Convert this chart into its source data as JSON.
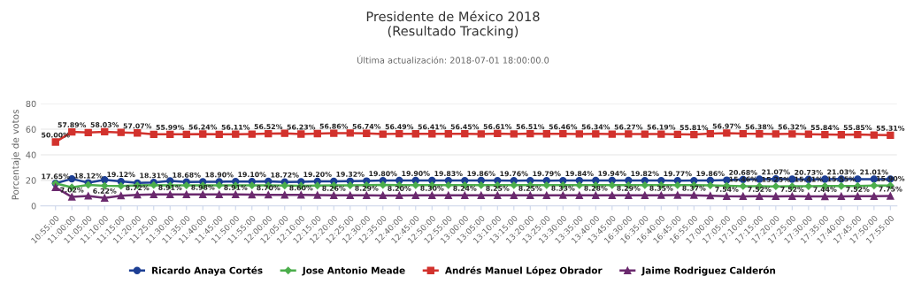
{
  "chart_data": {
    "type": "line",
    "title": "Presidente de México 2018\n(Resultado Tracking)",
    "subtitle": "Última actualización: 2018-07-01 18:00:00.0",
    "ylabel": "Porcentaje de votos",
    "categories": [
      "10:55:00",
      "11:00:00",
      "11:05:00",
      "11:10:00",
      "11:15:00",
      "11:20:00",
      "11:25:00",
      "11:30:00",
      "11:35:00",
      "11:40:00",
      "11:45:00",
      "11:50:00",
      "11:55:00",
      "12:00:00",
      "12:05:00",
      "12:10:00",
      "12:15:00",
      "12:20:00",
      "12:25:00",
      "12:30:00",
      "12:35:00",
      "12:40:00",
      "12:45:00",
      "12:50:00",
      "12:55:00",
      "13:00:00",
      "13:05:00",
      "13:10:00",
      "13:15:00",
      "13:20:00",
      "13:25:00",
      "13:30:00",
      "13:35:00",
      "13:40:00",
      "13:45:00",
      "16:30:00",
      "16:35:00",
      "16:40:00",
      "16:45:00",
      "16:55:00",
      "17:00:00",
      "17:05:00",
      "17:10:00",
      "17:15:00",
      "17:20:00",
      "17:25:00",
      "17:30:00",
      "17:35:00",
      "17:40:00",
      "17:45:00",
      "17:50:00",
      "17:55:00"
    ],
    "ylim": [
      0,
      80
    ],
    "yticks": [
      0,
      20,
      40,
      60,
      80
    ],
    "grid": "y",
    "legend": "bottom",
    "line_style": "solid",
    "series": [
      {
        "name": "Ricardo Anaya Cortés",
        "color": "#1d3f94",
        "marker": "circle",
        "values": [
          17.65,
          21.2,
          18.12,
          20.4,
          19.12,
          17.9,
          18.31,
          19.6,
          18.68,
          18.9,
          18.9,
          19.1,
          19.1,
          19.2,
          18.72,
          18.9,
          19.2,
          19.2,
          19.32,
          19.5,
          19.8,
          19.9,
          19.9,
          19.9,
          19.83,
          19.8,
          19.86,
          19.8,
          19.76,
          19.8,
          19.79,
          19.8,
          19.84,
          19.9,
          19.94,
          19.9,
          19.82,
          19.8,
          19.77,
          19.8,
          19.86,
          20.2,
          20.68,
          20.9,
          21.07,
          20.9,
          20.73,
          20.9,
          21.03,
          21.0,
          21.01,
          21.0
        ],
        "value_labels": [
          "17.65%",
          null,
          "18.12%",
          null,
          "19.12%",
          null,
          "18.31%",
          null,
          "18.68%",
          null,
          "18.90%",
          null,
          "19.10%",
          null,
          "18.72%",
          null,
          "19.20%",
          null,
          "19.32%",
          null,
          "19.80%",
          null,
          "19.90%",
          null,
          "19.83%",
          null,
          "19.86%",
          null,
          "19.76%",
          null,
          "19.79%",
          null,
          "19.84%",
          null,
          "19.94%",
          null,
          "19.82%",
          null,
          "19.77%",
          null,
          "19.86%",
          null,
          "20.68%",
          null,
          "21.07%",
          null,
          "20.73%",
          null,
          "21.03%",
          null,
          "21.01%",
          null
        ]
      },
      {
        "name": "Jose Antonio Meade",
        "color": "#4cae4c",
        "marker": "diamond",
        "values": [
          17.6,
          14.5,
          16.5,
          15.8,
          15.6,
          16.0,
          16.3,
          16.0,
          16.0,
          16.0,
          16.1,
          16.0,
          16.0,
          16.0,
          15.9,
          15.8,
          15.9,
          16.0,
          16.1,
          16.2,
          16.4,
          16.2,
          16.2,
          16.2,
          16.2,
          16.2,
          16.2,
          16.2,
          16.2,
          16.2,
          16.2,
          16.2,
          16.2,
          16.2,
          16.2,
          16.2,
          16.2,
          16.2,
          16.2,
          16.2,
          16.0,
          15.8,
          15.46,
          15.4,
          15.25,
          15.3,
          15.41,
          15.5,
          15.55,
          15.6,
          15.9,
          15.9
        ],
        "value_labels": [
          null,
          null,
          null,
          null,
          null,
          null,
          null,
          null,
          null,
          null,
          null,
          null,
          null,
          null,
          null,
          null,
          null,
          null,
          null,
          null,
          null,
          null,
          null,
          null,
          null,
          null,
          null,
          null,
          null,
          null,
          null,
          null,
          null,
          null,
          null,
          null,
          null,
          null,
          null,
          null,
          null,
          null,
          "15.46%",
          null,
          "15.25%",
          null,
          "15.41%",
          null,
          "15.55%",
          null,
          null,
          "15.90%"
        ]
      },
      {
        "name": "Andrés Manuel López Obrador",
        "color": "#d2322d",
        "marker": "square",
        "values": [
          50.0,
          57.89,
          57.4,
          58.03,
          57.5,
          57.07,
          56.0,
          55.99,
          56.0,
          56.24,
          56.0,
          56.11,
          56.2,
          56.52,
          56.8,
          56.23,
          56.6,
          56.86,
          57.0,
          56.74,
          56.2,
          56.49,
          56.4,
          56.41,
          56.4,
          56.45,
          56.3,
          56.61,
          56.3,
          56.51,
          56.4,
          56.46,
          56.3,
          56.34,
          56.2,
          56.27,
          56.2,
          56.19,
          56.0,
          55.81,
          56.5,
          56.97,
          56.5,
          56.38,
          56.3,
          56.32,
          56.1,
          55.84,
          55.7,
          55.85,
          55.5,
          55.31
        ],
        "value_labels": [
          "50.00%",
          "57.89%",
          null,
          "58.03%",
          null,
          "57.07%",
          null,
          "55.99%",
          null,
          "56.24%",
          null,
          "56.11%",
          null,
          "56.52%",
          null,
          "56.23%",
          null,
          "56.86%",
          null,
          "56.74%",
          null,
          "56.49%",
          null,
          "56.41%",
          null,
          "56.45%",
          null,
          "56.61%",
          null,
          "56.51%",
          null,
          "56.46%",
          null,
          "56.34%",
          null,
          "56.27%",
          null,
          "56.19%",
          null,
          "55.81%",
          null,
          "56.97%",
          null,
          "56.38%",
          null,
          "56.32%",
          null,
          "55.84%",
          null,
          "55.85%",
          null,
          "55.31%"
        ]
      },
      {
        "name": "Jaime Rodriguez Calderón",
        "color": "#6b2a6e",
        "marker": "triangle",
        "values": [
          14.5,
          7.02,
          7.8,
          6.22,
          8.0,
          8.72,
          9.0,
          8.91,
          8.9,
          8.98,
          9.0,
          8.91,
          8.8,
          8.7,
          8.6,
          8.6,
          8.4,
          8.26,
          8.3,
          8.29,
          8.2,
          8.2,
          8.3,
          8.3,
          8.3,
          8.24,
          8.3,
          8.25,
          8.3,
          8.25,
          8.3,
          8.33,
          8.3,
          8.28,
          8.3,
          8.29,
          8.3,
          8.35,
          8.4,
          8.37,
          8.0,
          7.54,
          7.5,
          7.52,
          7.5,
          7.52,
          7.5,
          7.44,
          7.5,
          7.52,
          7.6,
          7.75
        ],
        "value_labels": [
          null,
          "7.02%",
          null,
          "6.22%",
          null,
          "8.72%",
          null,
          "8.91%",
          null,
          "8.98%",
          null,
          "8.91%",
          null,
          "8.70%",
          null,
          "8.60%",
          null,
          "8.26%",
          null,
          "8.29%",
          null,
          "8.20%",
          null,
          "8.30%",
          null,
          "8.24%",
          null,
          "8.25%",
          null,
          "8.25%",
          null,
          "8.33%",
          null,
          "8.28%",
          null,
          "8.29%",
          null,
          "8.35%",
          null,
          "8.37%",
          null,
          "7.54%",
          null,
          "7.52%",
          null,
          "7.52%",
          null,
          "7.44%",
          null,
          "7.52%",
          null,
          "7.75%"
        ]
      }
    ]
  }
}
